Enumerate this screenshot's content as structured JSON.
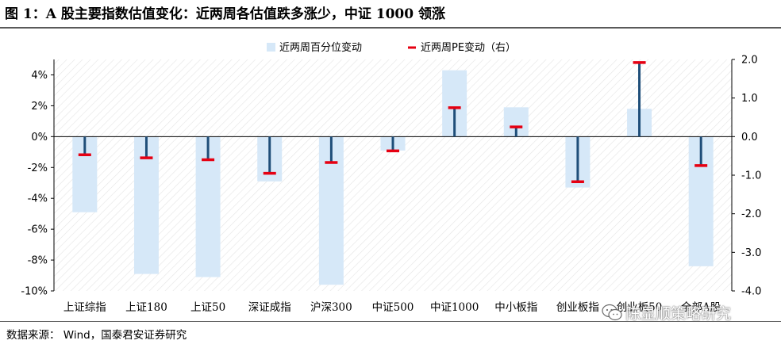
{
  "figure": {
    "title": "图 1：A 股主要指数估值变化：近两周各估值跌多涨少，中证 1000 领涨",
    "source": "数据来源：  Wind，国泰君安证券研究",
    "watermark": "陈显顺策略研究",
    "watermark_icon": "wechat-icon"
  },
  "chart_data": {
    "type": "bar",
    "categories": [
      "上证综指",
      "上证180",
      "上证50",
      "深证成指",
      "沪深300",
      "中证500",
      "中证1000",
      "中小板指",
      "创业板指",
      "创业板50",
      "全部A股"
    ],
    "series": [
      {
        "name": "近两周百分位变动",
        "axis": "left",
        "type": "bar",
        "color": "#d6e8f8",
        "values": [
          -4.9,
          -8.9,
          -9.1,
          -2.9,
          -9.6,
          -0.9,
          4.3,
          1.9,
          -3.3,
          1.8,
          -8.4
        ]
      },
      {
        "name": "近两周PE变动（右）",
        "axis": "right",
        "type": "errorbar-marker",
        "color": "#e60012",
        "stem_color": "#1f4e79",
        "values": [
          -0.47,
          -0.55,
          -0.6,
          -0.95,
          -0.67,
          -0.37,
          0.75,
          0.25,
          -1.17,
          1.92,
          -0.75
        ]
      }
    ],
    "y_left": {
      "ticks": [
        "4%",
        "2%",
        "0%",
        "-2%",
        "-4%",
        "-6%",
        "-8%",
        "-10%"
      ],
      "min": -10,
      "max": 5
    },
    "y_right": {
      "ticks": [
        "2.0",
        "1.0",
        "0.0",
        "-1.0",
        "-2.0",
        "-3.0",
        "-4.0"
      ],
      "min": -4,
      "max": 2
    },
    "legend_position": "top-center",
    "grid": false,
    "background": "diagonal-hatch"
  }
}
